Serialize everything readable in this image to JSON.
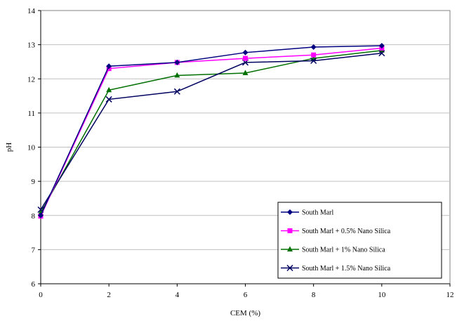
{
  "chart_data": {
    "type": "line",
    "xlabel": "CEM (%)",
    "ylabel": "pH",
    "xlim": [
      0,
      12
    ],
    "ylim": [
      6,
      14
    ],
    "x_ticks": [
      "0",
      "2",
      "4",
      "6",
      "8",
      "10",
      "12"
    ],
    "y_ticks": [
      "6",
      "7",
      "8",
      "9",
      "10",
      "11",
      "12",
      "13",
      "14"
    ],
    "grid": "horizontal",
    "legend_position": "bottom-right",
    "x": [
      0,
      2,
      4,
      6,
      8,
      10
    ],
    "series": [
      {
        "name": "South Marl",
        "values": [
          8.0,
          12.37,
          12.48,
          12.77,
          12.93,
          12.97
        ],
        "color": "#000080",
        "marker": "diamond"
      },
      {
        "name": "South Marl + 0.5% Nano Silica",
        "values": [
          7.98,
          12.3,
          12.48,
          12.6,
          12.7,
          12.9
        ],
        "color": "#ff00ff",
        "marker": "square"
      },
      {
        "name": "South Marl + 1% Nano Silica",
        "values": [
          8.08,
          11.67,
          12.1,
          12.17,
          12.6,
          12.83
        ],
        "color": "#007000",
        "marker": "triangle"
      },
      {
        "name": "South Marl + 1.5% Nano Silica",
        "values": [
          8.17,
          11.4,
          11.63,
          12.48,
          12.53,
          12.75
        ],
        "color": "#000060",
        "marker": "x"
      }
    ]
  }
}
